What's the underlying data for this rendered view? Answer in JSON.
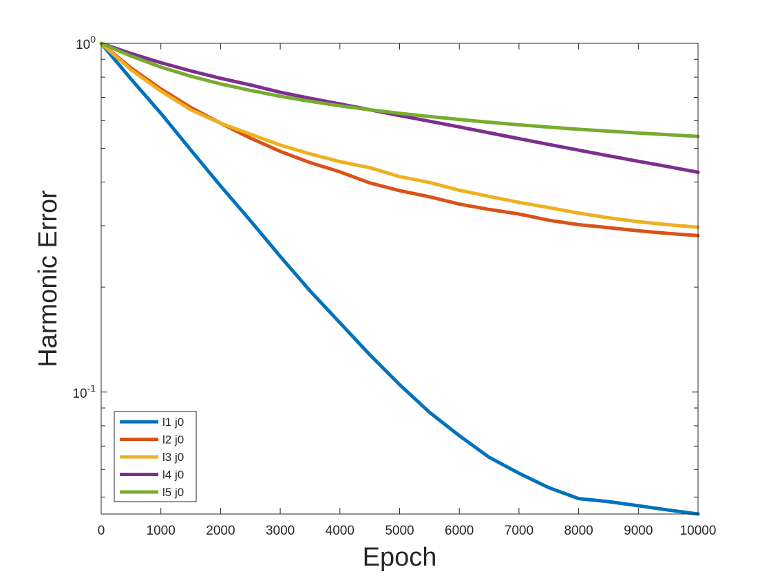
{
  "chart_data": {
    "type": "line",
    "title": "",
    "xlabel": "Epoch",
    "ylabel": "Harmonic Error",
    "xlim": [
      0,
      10000
    ],
    "ylim": [
      0.0447,
      1.0
    ],
    "yscale": "log",
    "grid": false,
    "legend_position": "bottom-left",
    "x_ticks": [
      0,
      1000,
      2000,
      3000,
      4000,
      5000,
      6000,
      7000,
      8000,
      9000,
      10000
    ],
    "x_tick_labels": [
      "0",
      "1000",
      "2000",
      "3000",
      "4000",
      "5000",
      "6000",
      "7000",
      "8000",
      "9000",
      "10000"
    ],
    "y_ticks": [
      {
        "value": 1.0,
        "base": "10",
        "exp": "0"
      },
      {
        "value": 0.1,
        "base": "10",
        "exp": "-1"
      }
    ],
    "x": [
      0,
      500,
      1000,
      1500,
      2000,
      2500,
      3000,
      3500,
      4000,
      4500,
      5000,
      5500,
      6000,
      6500,
      7000,
      7500,
      8000,
      8500,
      9000,
      9500,
      10000
    ],
    "series": [
      {
        "name": "l1 j0",
        "color": "#0072BD",
        "values": [
          1.0,
          0.79,
          0.63,
          0.495,
          0.39,
          0.31,
          0.245,
          0.195,
          0.158,
          0.128,
          0.105,
          0.0875,
          0.075,
          0.065,
          0.0585,
          0.0532,
          0.0495,
          0.0485,
          0.0472,
          0.0459,
          0.0447
        ]
      },
      {
        "name": "l2 j0",
        "color": "#D95319",
        "values": [
          1.0,
          0.85,
          0.74,
          0.655,
          0.59,
          0.535,
          0.49,
          0.455,
          0.428,
          0.398,
          0.378,
          0.363,
          0.346,
          0.334,
          0.324,
          0.311,
          0.302,
          0.296,
          0.29,
          0.285,
          0.281
        ]
      },
      {
        "name": "l3 j0",
        "color": "#EDB120",
        "values": [
          1.0,
          0.84,
          0.73,
          0.645,
          0.59,
          0.549,
          0.511,
          0.482,
          0.458,
          0.44,
          0.415,
          0.399,
          0.379,
          0.364,
          0.35,
          0.338,
          0.326,
          0.316,
          0.308,
          0.302,
          0.297
        ]
      },
      {
        "name": "l4 j0",
        "color": "#7E2F8E",
        "values": [
          1.0,
          0.935,
          0.88,
          0.834,
          0.794,
          0.76,
          0.724,
          0.696,
          0.67,
          0.645,
          0.621,
          0.598,
          0.576,
          0.554,
          0.533,
          0.513,
          0.494,
          0.476,
          0.459,
          0.443,
          0.427
        ]
      },
      {
        "name": "l5 j0",
        "color": "#77AC30",
        "values": [
          1.0,
          0.92,
          0.855,
          0.805,
          0.765,
          0.733,
          0.705,
          0.682,
          0.662,
          0.645,
          0.63,
          0.617,
          0.605,
          0.594,
          0.584,
          0.575,
          0.567,
          0.56,
          0.553,
          0.547,
          0.541
        ]
      }
    ]
  }
}
